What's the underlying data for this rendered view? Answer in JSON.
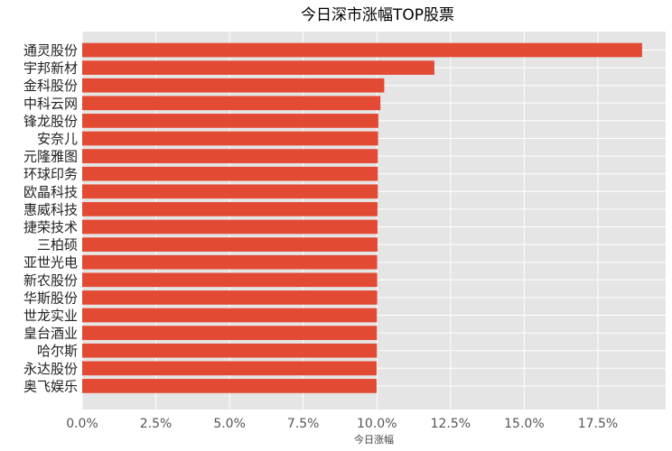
{
  "chart_data": {
    "type": "bar",
    "orientation": "horizontal",
    "title": "今日深市涨幅TOP股票",
    "xlabel": "今日涨幅",
    "ylabel": "",
    "xlim": [
      0,
      19.8
    ],
    "xticks": [
      0,
      2.5,
      5.0,
      7.5,
      10.0,
      12.5,
      15.0,
      17.5
    ],
    "xtick_labels": [
      "0.0%",
      "2.5%",
      "5.0%",
      "7.5%",
      "10.0%",
      "12.5%",
      "15.0%",
      "17.5%"
    ],
    "grid": true,
    "bar_color": "#E24A33",
    "background_color": "#E5E5E5",
    "categories": [
      "通灵股份",
      "宇邦新材",
      "金科股份",
      "中科云网",
      "锋龙股份",
      "安奈儿",
      "元隆雅图",
      "环球印务",
      "欧晶科技",
      "惠威科技",
      "捷荣技术",
      "三柏硕",
      "亚世光电",
      "新农股份",
      "华斯股份",
      "世龙实业",
      "皇台酒业",
      "哈尔斯",
      "永达股份",
      "奥飞娱乐"
    ],
    "values": [
      19.0,
      11.95,
      10.25,
      10.12,
      10.05,
      10.04,
      10.03,
      10.03,
      10.03,
      10.02,
      10.02,
      10.02,
      10.01,
      10.01,
      10.01,
      10.0,
      10.0,
      10.0,
      9.99,
      9.99
    ]
  }
}
